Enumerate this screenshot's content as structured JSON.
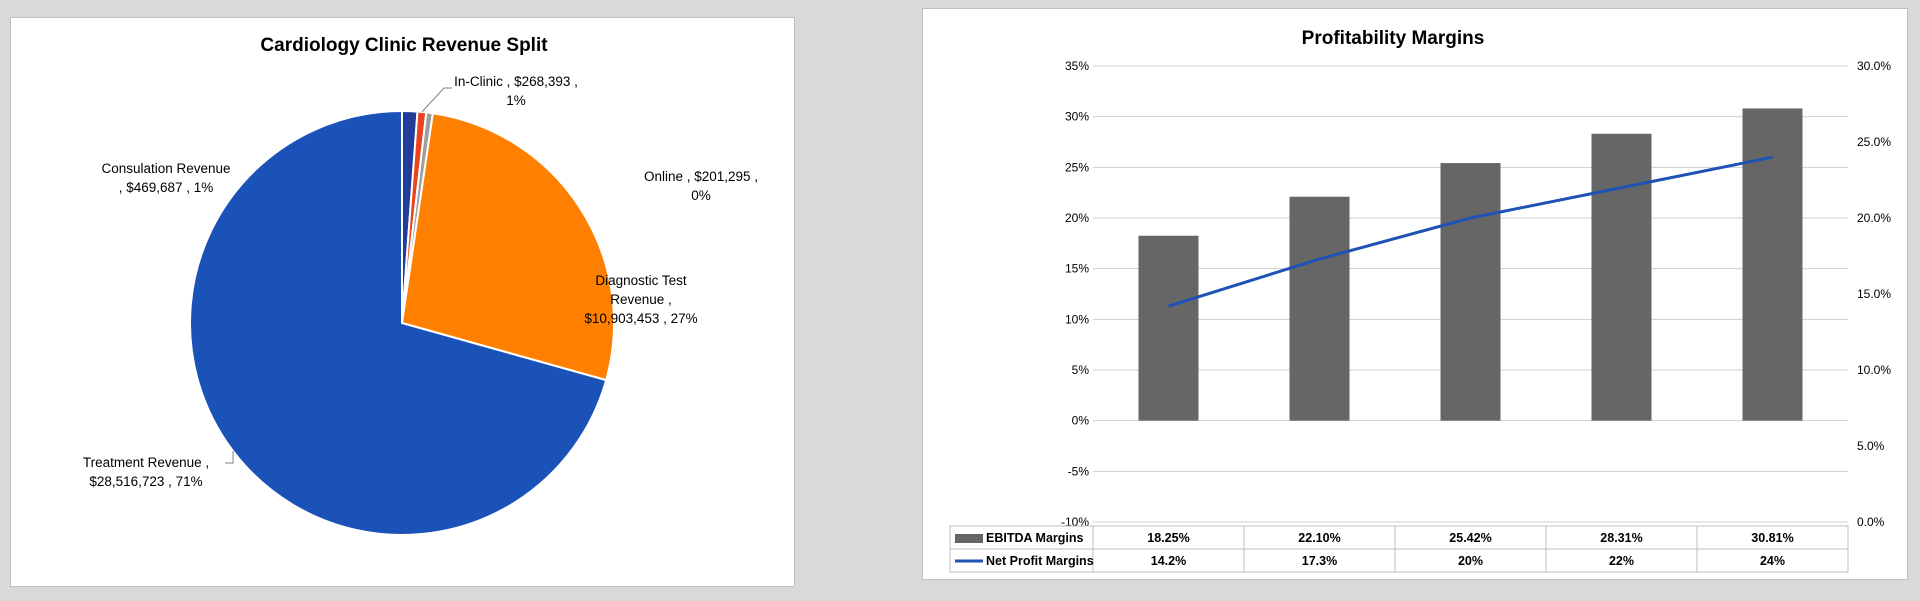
{
  "colors": {
    "pie": [
      "#1f3d99",
      "#e8451e",
      "#9e9e9e",
      "#ff8000",
      "#1a52b8"
    ],
    "bar": "#666666",
    "line": "#1f52b5"
  },
  "chart_data": [
    {
      "type": "pie",
      "title": "Cardiology Clinic Revenue Split",
      "slices": [
        {
          "name": "Consulation Revenue",
          "value": 469687,
          "label": [
            "Consulation Revenue",
            ", $469,687 , 1%"
          ]
        },
        {
          "name": "In-Clinic",
          "value": 268393,
          "label": [
            "In-Clinic ,  $268,393 ,",
            "1%"
          ]
        },
        {
          "name": "Online",
          "value": 201295,
          "label": [
            "Online ,  $201,295 ,",
            "0%"
          ]
        },
        {
          "name": "Diagnostic Test Revenue",
          "value": 10903453,
          "label": [
            "Diagnostic Test",
            "Revenue ,",
            "$10,903,453 , 27%"
          ]
        },
        {
          "name": "Treatment Revenue",
          "value": 28516723,
          "label": [
            "Treatment Revenue ,",
            "$28,516,723 , 71%"
          ]
        }
      ]
    },
    {
      "type": "bar",
      "title": "Profitability Margins",
      "categories": [
        "",
        "",
        "",
        "",
        ""
      ],
      "y_left": {
        "min": -0.1,
        "max": 0.35,
        "step": 0.05,
        "ticks": [
          "-10%",
          "-5%",
          "0%",
          "5%",
          "10%",
          "15%",
          "20%",
          "25%",
          "30%",
          "35%"
        ]
      },
      "y_right": {
        "min": 0.0,
        "max": 0.3,
        "step": 0.05,
        "ticks": [
          "0.0%",
          "5.0%",
          "10.0%",
          "15.0%",
          "20.0%",
          "25.0%",
          "30.0%"
        ]
      },
      "grid": true,
      "series": [
        {
          "name": "EBITDA Margins",
          "kind": "bar",
          "axis": "left",
          "values": [
            0.1825,
            0.221,
            0.2542,
            0.2831,
            0.3081
          ],
          "table": [
            "18.25%",
            "22.10%",
            "25.42%",
            "28.31%",
            "30.81%"
          ]
        },
        {
          "name": "Net Profit Margins",
          "kind": "line",
          "axis": "right",
          "values": [
            0.142,
            0.173,
            0.2,
            0.22,
            0.24
          ],
          "table": [
            "14.2%",
            "17.3%",
            "20%",
            "22%",
            "24%"
          ]
        }
      ]
    }
  ]
}
